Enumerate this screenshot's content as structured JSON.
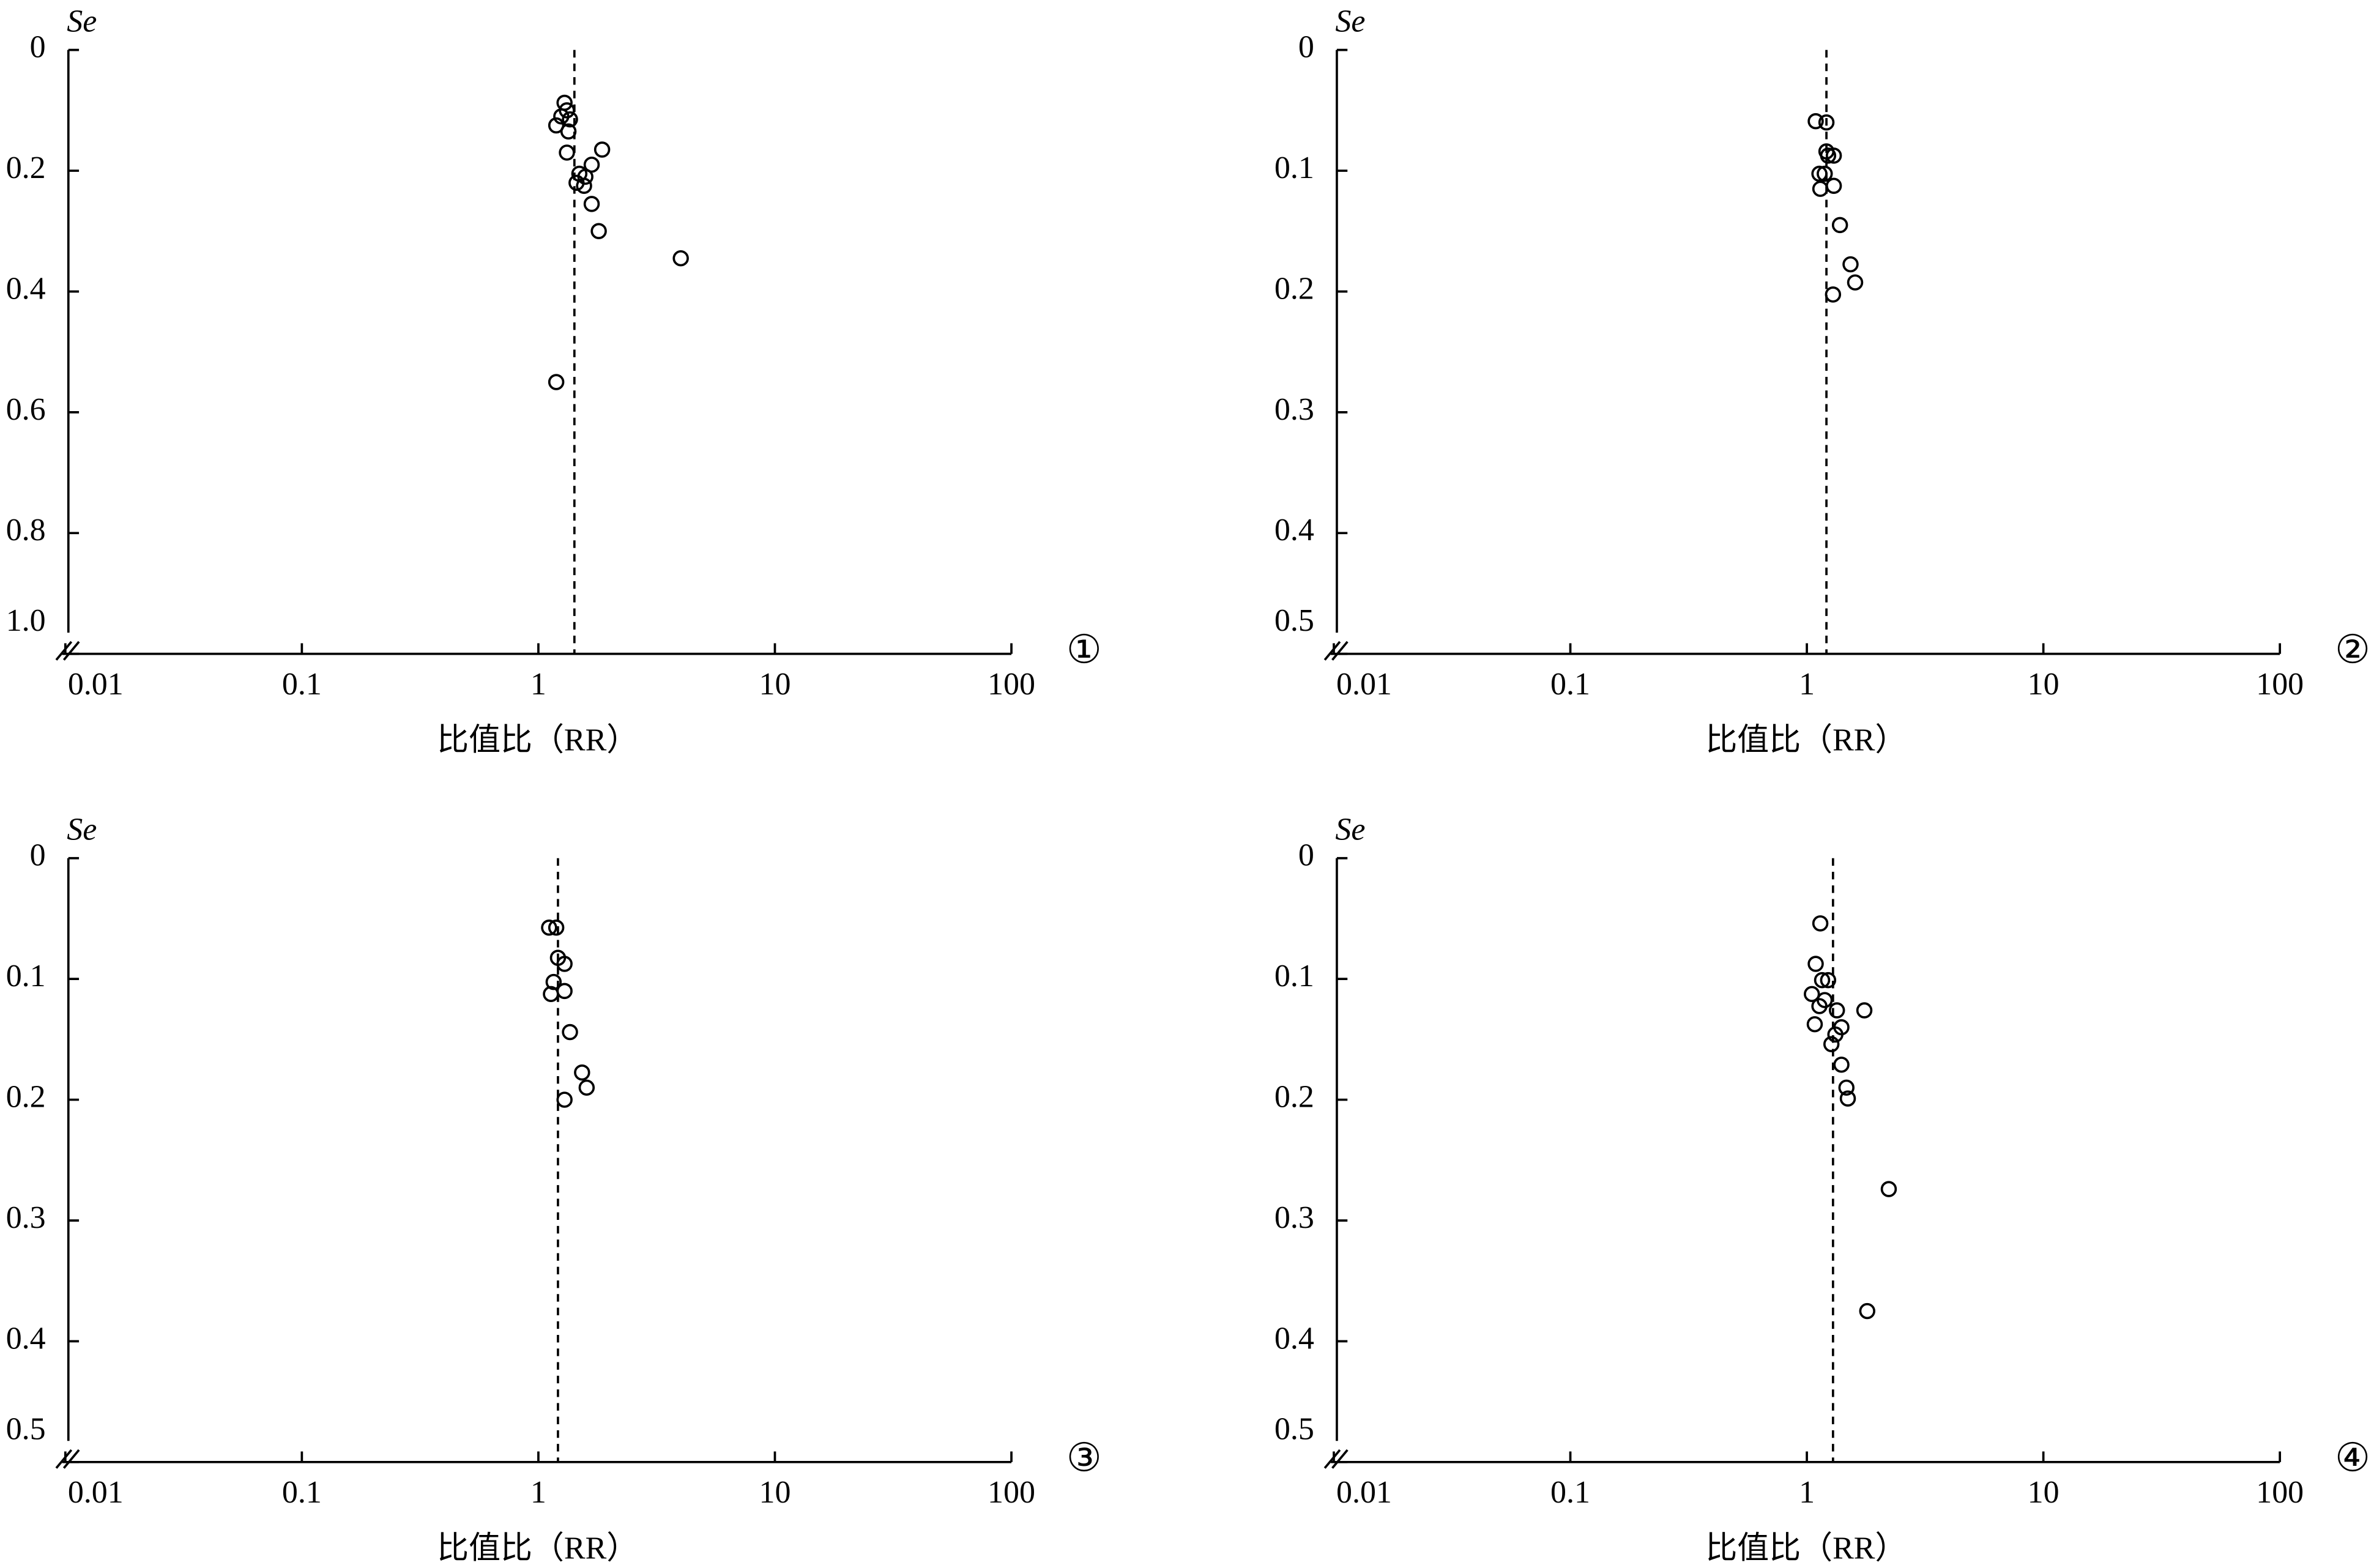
{
  "chart_data": [
    {
      "type": "scatter",
      "panel_label": "①",
      "ylabel": "Se",
      "xlabel": "比值比（RR）",
      "xscale": "log",
      "y_inverted": true,
      "color": "#000000",
      "xlim": [
        0.01,
        100
      ],
      "xticks": [
        0.01,
        0.1,
        1,
        10,
        100
      ],
      "ylim": [
        0,
        1
      ],
      "yticks": [
        0,
        0.2,
        0.4,
        0.6,
        0.8,
        {
          "value": 1,
          "label": "1.0"
        }
      ],
      "reference_line": 1.42,
      "x": [
        1.29,
        1.32,
        1.25,
        1.36,
        1.19,
        1.34,
        1.86,
        1.32,
        1.68,
        1.49,
        1.58,
        1.45,
        1.56,
        1.68,
        1.8,
        4.0,
        1.19
      ],
      "y": [
        0.0875,
        0.1,
        0.11,
        0.115,
        0.125,
        0.135,
        0.165,
        0.17,
        0.19,
        0.205,
        0.21,
        0.22,
        0.225,
        0.255,
        0.3,
        0.345,
        0.55
      ]
    },
    {
      "type": "scatter",
      "panel_label": "②",
      "ylabel": "Se",
      "xlabel": "比值比（RR）",
      "xscale": "log",
      "y_inverted": true,
      "color": "#000000",
      "xlim": [
        0.01,
        100
      ],
      "xticks": [
        0.01,
        0.1,
        1,
        10,
        100
      ],
      "ylim": [
        0,
        0.5
      ],
      "yticks": [
        0,
        0.1,
        0.2,
        0.3,
        0.4,
        0.5
      ],
      "reference_line": 1.21,
      "x": [
        1.09,
        1.21,
        1.21,
        1.3,
        1.23,
        1.13,
        1.19,
        1.14,
        1.3,
        1.38,
        1.53,
        1.6,
        1.29
      ],
      "y": [
        0.059,
        0.06,
        0.084,
        0.0875,
        0.0875,
        0.1025,
        0.1025,
        0.115,
        0.1125,
        0.145,
        0.1775,
        0.1925,
        0.2025
      ]
    },
    {
      "type": "scatter",
      "panel_label": "③",
      "ylabel": "Se",
      "xlabel": "比值比（RR）",
      "xscale": "log",
      "y_inverted": true,
      "color": "#000000",
      "xlim": [
        0.01,
        100
      ],
      "xticks": [
        0.01,
        0.1,
        1,
        10,
        100
      ],
      "ylim": [
        0,
        0.5
      ],
      "yticks": [
        0,
        0.1,
        0.2,
        0.3,
        0.4,
        0.5
      ],
      "reference_line": 1.21,
      "x": [
        1.11,
        1.19,
        1.21,
        1.29,
        1.16,
        1.13,
        1.29,
        1.36,
        1.53,
        1.6,
        1.29
      ],
      "y": [
        0.0575,
        0.0575,
        0.0825,
        0.0875,
        0.1025,
        0.1125,
        0.11,
        0.144,
        0.1775,
        0.19,
        0.2
      ]
    },
    {
      "type": "scatter",
      "panel_label": "④",
      "ylabel": "Se",
      "xlabel": "比值比（RR）",
      "xscale": "log",
      "y_inverted": true,
      "color": "#000000",
      "xlim": [
        0.01,
        100
      ],
      "xticks": [
        0.01,
        0.1,
        1,
        10,
        100
      ],
      "ylim": [
        0,
        0.5
      ],
      "yticks": [
        0,
        0.1,
        0.2,
        0.3,
        0.4,
        0.5
      ],
      "reference_line": 1.29,
      "x": [
        1.14,
        1.09,
        1.16,
        1.23,
        1.05,
        1.13,
        1.19,
        1.34,
        1.75,
        1.4,
        1.32,
        1.08,
        1.27,
        1.4,
        1.47,
        1.49,
        2.22,
        1.8
      ],
      "y": [
        0.054,
        0.0875,
        0.101,
        0.101,
        0.1125,
        0.1225,
        0.1175,
        0.126,
        0.126,
        0.14,
        0.146,
        0.1375,
        0.154,
        0.171,
        0.19,
        0.199,
        0.274,
        0.375
      ]
    }
  ]
}
